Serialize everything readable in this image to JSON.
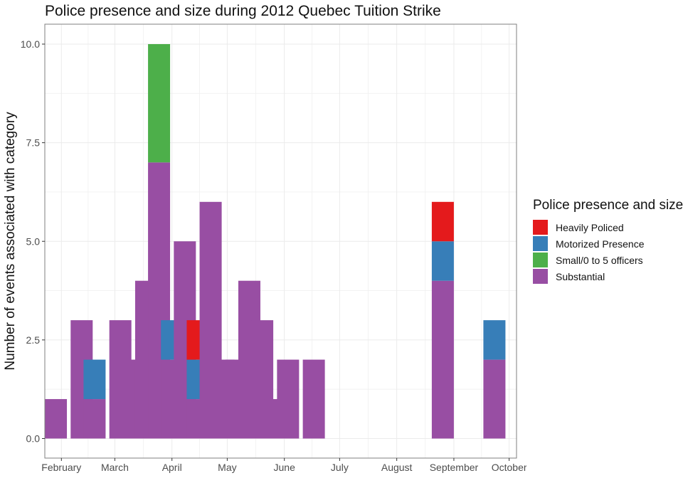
{
  "chart_data": {
    "type": "bar",
    "stacked": true,
    "title": "Police presence and size during 2012 Quebec Tuition Strike",
    "xlabel": "",
    "ylabel": "Number of events associated with category",
    "ylim": [
      0,
      10.5
    ],
    "yticks": [
      0.0,
      2.5,
      5.0,
      7.5,
      10.0
    ],
    "ytick_labels": [
      "0.0",
      "2.5",
      "5.0",
      "7.5",
      "10.0"
    ],
    "xlim": [
      "2012-01-23",
      "2012-10-05"
    ],
    "xticks": [
      "2012-02-01",
      "2012-03-01",
      "2012-04-01",
      "2012-05-01",
      "2012-06-01",
      "2012-07-01",
      "2012-08-01",
      "2012-09-01",
      "2012-10-01"
    ],
    "xtick_labels": [
      "February",
      "March",
      "April",
      "May",
      "June",
      "July",
      "August",
      "September",
      "October"
    ],
    "grid": true,
    "legend": {
      "title": "Police presence and size",
      "position": "right"
    },
    "series": [
      {
        "name": "Heavily Policed",
        "color": "#e41a1c"
      },
      {
        "name": "Motorized Presence",
        "color": "#377eb8"
      },
      {
        "name": "Small/0 to 5 officers",
        "color": "#4daf4a"
      },
      {
        "name": "Substantial",
        "color": "#984ea3"
      }
    ],
    "bars": [
      {
        "week": "2012-01-29",
        "Substantial": 1
      },
      {
        "week": "2012-02-12",
        "Substantial": 3
      },
      {
        "week": "2012-02-19",
        "Substantial": 1,
        "Motorized Presence": 1
      },
      {
        "week": "2012-03-04",
        "Substantial": 3
      },
      {
        "week": "2012-03-11",
        "Substantial": 2
      },
      {
        "week": "2012-03-18",
        "Substantial": 4
      },
      {
        "week": "2012-03-25",
        "Substantial": 7,
        "Small/0 to 5 officers": 3
      },
      {
        "week": "2012-04-01",
        "Substantial": 2,
        "Motorized Presence": 1
      },
      {
        "week": "2012-04-08",
        "Substantial": 5
      },
      {
        "week": "2012-04-15",
        "Substantial": 1,
        "Motorized Presence": 1,
        "Heavily Policed": 1
      },
      {
        "week": "2012-04-22",
        "Substantial": 6
      },
      {
        "week": "2012-04-29",
        "Substantial": 2
      },
      {
        "week": "2012-05-06",
        "Substantial": 2
      },
      {
        "week": "2012-05-13",
        "Substantial": 4
      },
      {
        "week": "2012-05-20",
        "Substantial": 3
      },
      {
        "week": "2012-05-27",
        "Substantial": 1
      },
      {
        "week": "2012-06-03",
        "Substantial": 2
      },
      {
        "week": "2012-06-17",
        "Substantial": 2
      },
      {
        "week": "2012-08-26",
        "Substantial": 4,
        "Motorized Presence": 1,
        "Heavily Policed": 1
      },
      {
        "week": "2012-09-23",
        "Substantial": 2,
        "Motorized Presence": 1
      }
    ]
  }
}
